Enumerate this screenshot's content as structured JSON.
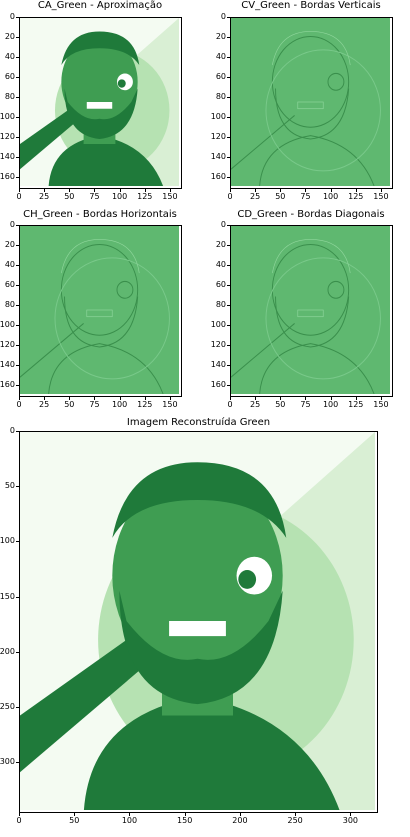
{
  "figure": {
    "panels": [
      {
        "id": "ca",
        "title": "CA_Green - Aproximação",
        "xticks": [
          "0",
          "25",
          "50",
          "75",
          "100",
          "125",
          "150"
        ],
        "yticks": [
          "0",
          "20",
          "40",
          "60",
          "80",
          "100",
          "120",
          "140",
          "160"
        ],
        "xlim": [
          0,
          162
        ],
        "ylim": [
          0,
          172
        ]
      },
      {
        "id": "cv",
        "title": "CV_Green - Bordas Verticais",
        "xticks": [
          "0",
          "25",
          "50",
          "75",
          "100",
          "125",
          "150"
        ],
        "yticks": [
          "0",
          "20",
          "40",
          "60",
          "80",
          "100",
          "120",
          "140",
          "160"
        ],
        "xlim": [
          0,
          162
        ],
        "ylim": [
          0,
          172
        ]
      },
      {
        "id": "ch",
        "title": "CH_Green - Bordas Horizontais",
        "xticks": [
          "0",
          "25",
          "50",
          "75",
          "100",
          "125",
          "150"
        ],
        "yticks": [
          "0",
          "20",
          "40",
          "60",
          "80",
          "100",
          "120",
          "140",
          "160"
        ],
        "xlim": [
          0,
          162
        ],
        "ylim": [
          0,
          172
        ]
      },
      {
        "id": "cd",
        "title": "CD_Green - Bordas Diagonais",
        "xticks": [
          "0",
          "25",
          "50",
          "75",
          "100",
          "125",
          "150"
        ],
        "yticks": [
          "0",
          "20",
          "40",
          "60",
          "80",
          "100",
          "120",
          "140",
          "160"
        ],
        "xlim": [
          0,
          162
        ],
        "ylim": [
          0,
          172
        ]
      },
      {
        "id": "recon",
        "title": "Imagem Reconstruída Green",
        "xticks": [
          "0",
          "50",
          "100",
          "150",
          "200",
          "250",
          "300"
        ],
        "yticks": [
          "0",
          "50",
          "100",
          "150",
          "200",
          "250",
          "300"
        ],
        "xlim": [
          0,
          325
        ],
        "ylim": [
          0,
          346
        ]
      }
    ]
  },
  "colors": {
    "plot_bg_light": "#eef8ec",
    "edge_bg": "#5fb870",
    "dark": "#1f7a3a",
    "mid": "#3f9d52",
    "light": "#b6e2b2",
    "bright": "#f4fbf2"
  }
}
